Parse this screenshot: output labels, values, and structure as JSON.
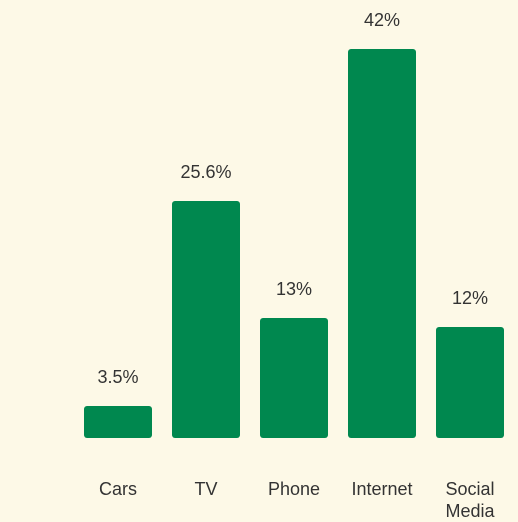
{
  "chart_data": {
    "type": "bar",
    "categories": [
      "Cars",
      "TV",
      "Phone",
      "Internet",
      "Social Media"
    ],
    "values": [
      3.5,
      25.6,
      13,
      42,
      12
    ],
    "value_labels": [
      "3.5%",
      "25.6%",
      "13%",
      "42%",
      "12%"
    ],
    "color": "#00884f"
  }
}
